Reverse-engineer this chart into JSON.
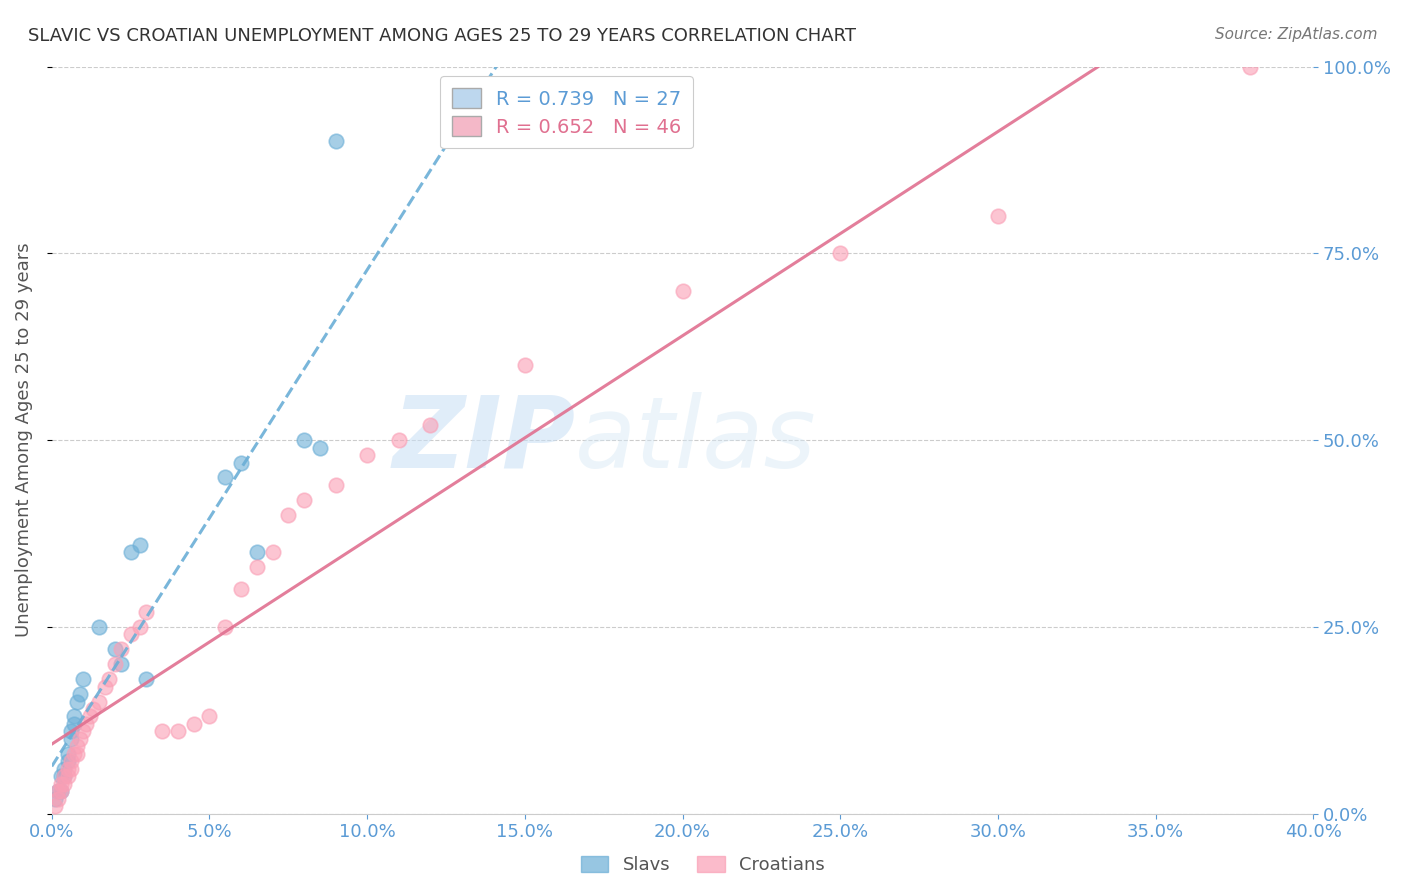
{
  "title": "SLAVIC VS CROATIAN UNEMPLOYMENT AMONG AGES 25 TO 29 YEARS CORRELATION CHART",
  "source": "Source: ZipAtlas.com",
  "ylabel": "Unemployment Among Ages 25 to 29 years",
  "xlim": [
    0.0,
    0.4
  ],
  "ylim": [
    0.0,
    1.0
  ],
  "xticks": [
    0.0,
    0.05,
    0.1,
    0.15,
    0.2,
    0.25,
    0.3,
    0.35,
    0.4
  ],
  "yticks": [
    0.0,
    0.25,
    0.5,
    0.75,
    1.0
  ],
  "slavs_x": [
    0.001,
    0.002,
    0.003,
    0.003,
    0.004,
    0.004,
    0.005,
    0.005,
    0.006,
    0.006,
    0.007,
    0.007,
    0.008,
    0.009,
    0.01,
    0.015,
    0.02,
    0.022,
    0.025,
    0.028,
    0.03,
    0.055,
    0.06,
    0.065,
    0.08,
    0.085,
    0.09
  ],
  "slavs_y": [
    0.02,
    0.03,
    0.03,
    0.05,
    0.05,
    0.06,
    0.07,
    0.08,
    0.1,
    0.11,
    0.12,
    0.13,
    0.15,
    0.16,
    0.18,
    0.25,
    0.22,
    0.2,
    0.35,
    0.36,
    0.18,
    0.45,
    0.47,
    0.35,
    0.5,
    0.49,
    0.9
  ],
  "croatians_x": [
    0.001,
    0.002,
    0.002,
    0.003,
    0.003,
    0.004,
    0.004,
    0.005,
    0.005,
    0.006,
    0.006,
    0.007,
    0.008,
    0.008,
    0.009,
    0.01,
    0.011,
    0.012,
    0.013,
    0.015,
    0.017,
    0.018,
    0.02,
    0.022,
    0.025,
    0.028,
    0.03,
    0.035,
    0.04,
    0.045,
    0.05,
    0.055,
    0.06,
    0.065,
    0.07,
    0.075,
    0.08,
    0.09,
    0.1,
    0.11,
    0.12,
    0.15,
    0.2,
    0.25,
    0.3,
    0.38
  ],
  "croatians_y": [
    0.01,
    0.02,
    0.03,
    0.03,
    0.04,
    0.04,
    0.05,
    0.05,
    0.06,
    0.06,
    0.07,
    0.08,
    0.08,
    0.09,
    0.1,
    0.11,
    0.12,
    0.13,
    0.14,
    0.15,
    0.17,
    0.18,
    0.2,
    0.22,
    0.24,
    0.25,
    0.27,
    0.11,
    0.11,
    0.12,
    0.13,
    0.25,
    0.3,
    0.33,
    0.35,
    0.4,
    0.42,
    0.44,
    0.48,
    0.5,
    0.52,
    0.6,
    0.7,
    0.75,
    0.8,
    1.0
  ],
  "slavs_color": "#6baed6",
  "croatians_color": "#fa9fb5",
  "slavs_line_color": "#6baed6",
  "croatians_line_color": "#e07090",
  "slavs_R": 0.739,
  "slavs_N": 27,
  "croatians_R": 0.652,
  "croatians_N": 46,
  "watermark_zip": "ZIP",
  "watermark_atlas": "atlas",
  "background_color": "#ffffff",
  "grid_color": "#cccccc",
  "axis_label_color": "#5b9bd5",
  "title_color": "#333333",
  "legend_box_color_slavs": "#bdd7ee",
  "legend_box_color_croatians": "#f4b8c8",
  "legend_text_color_slavs": "#5b9bd5",
  "legend_text_color_croatians": "#e07090"
}
